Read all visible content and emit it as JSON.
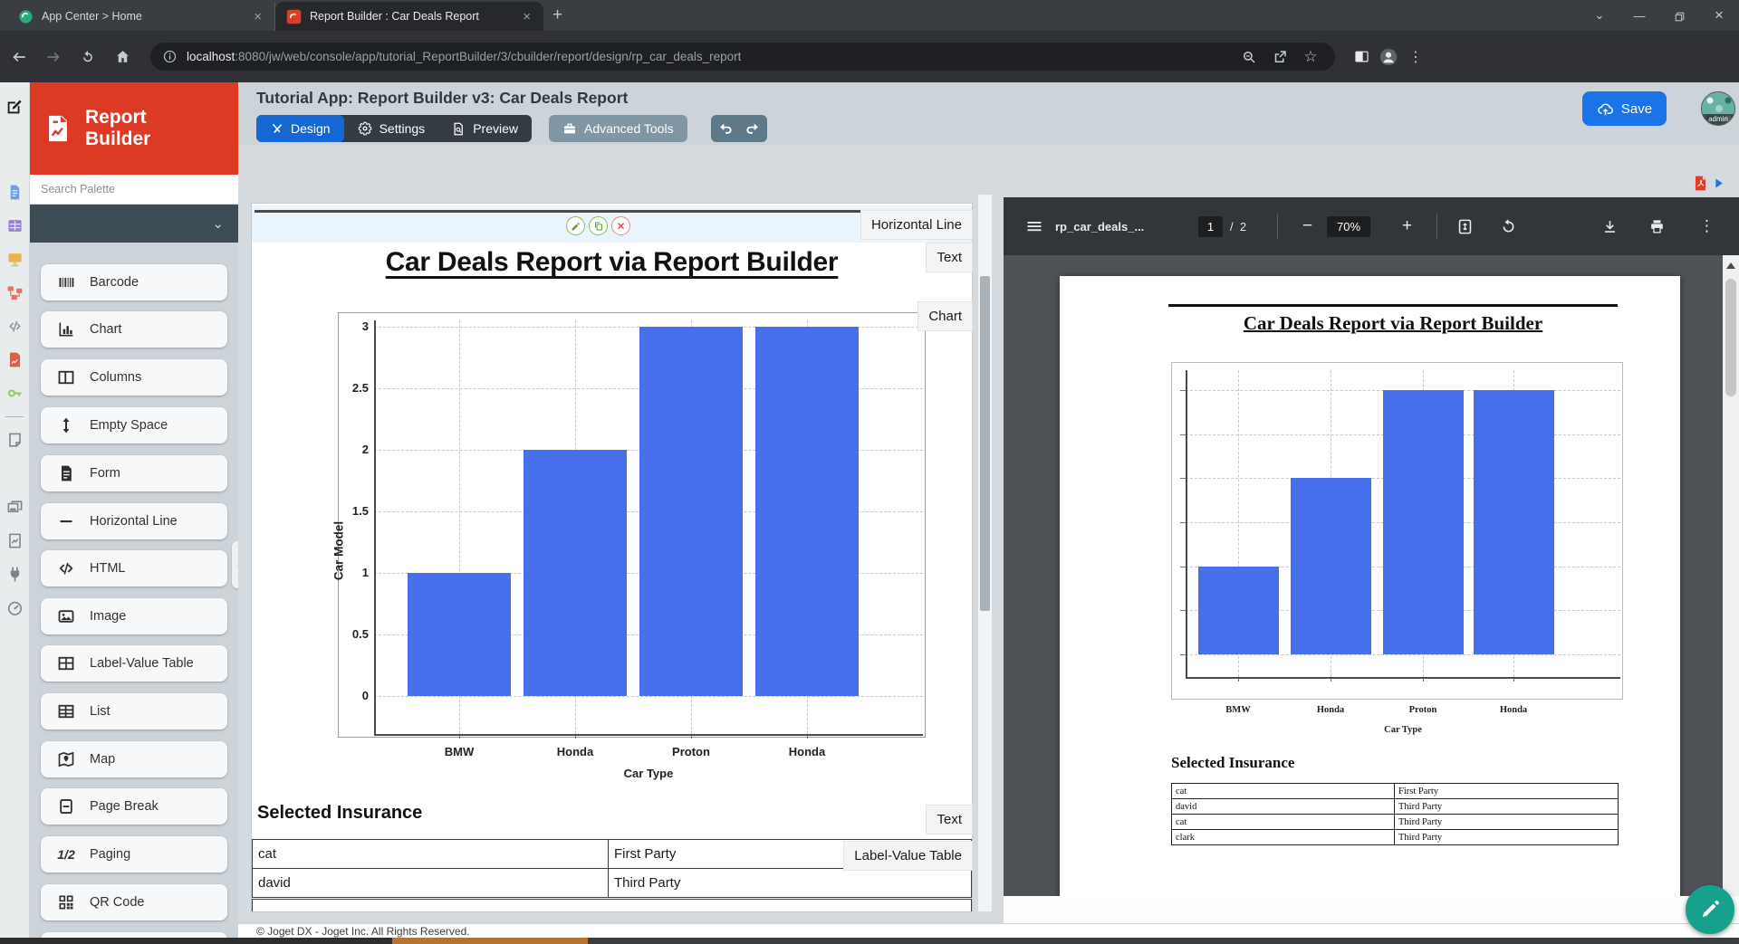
{
  "browser": {
    "tabs": [
      {
        "title": "App Center > Home"
      },
      {
        "title": "Report Builder : Car Deals Report"
      }
    ],
    "url": {
      "host": "localhost",
      "rest": ":8080/jw/web/console/app/tutorial_ReportBuilder/3/cbuilder/report/design/rp_car_deals_report"
    }
  },
  "header": {
    "logo_line1": "Report",
    "logo_line2": "Builder",
    "title": "Tutorial App: Report Builder v3: Car Deals Report",
    "design_label": "Design",
    "settings_label": "Settings",
    "preview_label": "Preview",
    "advanced_tools_label": "Advanced Tools",
    "save_label": "Save",
    "avatar_label": "admin"
  },
  "rail": {
    "items": [
      {
        "icon": "form-doc-icon",
        "color": "#6c9eea"
      },
      {
        "icon": "datalist-grid-icon",
        "color": "#9b7fd4"
      },
      {
        "icon": "userview-monitor-icon",
        "color": "#eab54e"
      },
      {
        "icon": "process-flow-icon",
        "color": "#e57368"
      },
      {
        "icon": "code-icon",
        "color": "#8a98a0"
      },
      {
        "icon": "report-doc-icon",
        "color": "#dd5f46"
      },
      {
        "icon": "key-icon",
        "color": "#97c95c"
      },
      {
        "icon": "divider",
        "color": ""
      },
      {
        "icon": "note-icon",
        "color": "#7a848b"
      },
      {
        "icon": "variable-icon",
        "color": "#7a848b"
      },
      {
        "icon": "media-icon",
        "color": "#7a848b"
      },
      {
        "icon": "chart-doc-icon",
        "color": "#7a848b"
      },
      {
        "icon": "plug-icon",
        "color": "#7a848b"
      },
      {
        "icon": "gauge-icon",
        "color": "#7a848b"
      }
    ]
  },
  "palette": {
    "search_placeholder": "Search Palette",
    "items": [
      {
        "icon": "barcode-icon",
        "label": "Barcode"
      },
      {
        "icon": "chart-icon",
        "label": "Chart"
      },
      {
        "icon": "columns-icon",
        "label": "Columns"
      },
      {
        "icon": "empty-space-icon",
        "label": "Empty Space"
      },
      {
        "icon": "form-icon",
        "label": "Form"
      },
      {
        "icon": "horizontal-line-icon",
        "label": "Horizontal Line"
      },
      {
        "icon": "html-icon",
        "label": "HTML"
      },
      {
        "icon": "image-icon",
        "label": "Image"
      },
      {
        "icon": "label-value-table-icon",
        "label": "Label-Value Table"
      },
      {
        "icon": "list-icon",
        "label": "List"
      },
      {
        "icon": "map-icon",
        "label": "Map"
      },
      {
        "icon": "page-break-icon",
        "label": "Page Break"
      },
      {
        "icon": "paging-icon",
        "label": "Paging",
        "glyph": "1/2"
      },
      {
        "icon": "qr-code-icon",
        "label": "QR Code"
      }
    ]
  },
  "canvas": {
    "badges": {
      "horizontal_line": "Horizontal Line",
      "text1": "Text",
      "chart": "Chart",
      "text2": "Text",
      "label_value_table": "Label-Value Table"
    },
    "title": "Car Deals Report via Report Builder",
    "section_heading": "Selected Insurance",
    "table_rows": [
      [
        "cat",
        "First Party"
      ],
      [
        "david",
        "Third Party"
      ]
    ],
    "footer": "© Joget DX - Joget Inc. All Rights Reserved."
  },
  "chart_data": {
    "type": "bar",
    "categories": [
      "BMW",
      "Honda",
      "Proton",
      "Honda"
    ],
    "values": [
      1,
      2,
      3,
      3
    ],
    "title": "",
    "xlabel": "Car Type",
    "ylabel": "Car Model",
    "yticks": [
      0,
      0.5,
      1,
      1.5,
      2,
      2.5,
      3
    ],
    "ylim": [
      -0.3,
      3.1
    ],
    "bar_color": "#4470EB",
    "grid": "dashed",
    "legend": "none"
  },
  "pdf": {
    "filename": "rp_car_deals_...",
    "page_current": "1",
    "page_divider": "/",
    "page_total": "2",
    "zoom_level": "70%",
    "doc_title": "Car Deals Report via Report Builder",
    "section_heading": "Selected Insurance",
    "table_rows": [
      [
        "cat",
        "First Party"
      ],
      [
        "david",
        "Third Party"
      ],
      [
        "cat",
        "Third Party"
      ],
      [
        "clark",
        "Third Party"
      ]
    ]
  }
}
